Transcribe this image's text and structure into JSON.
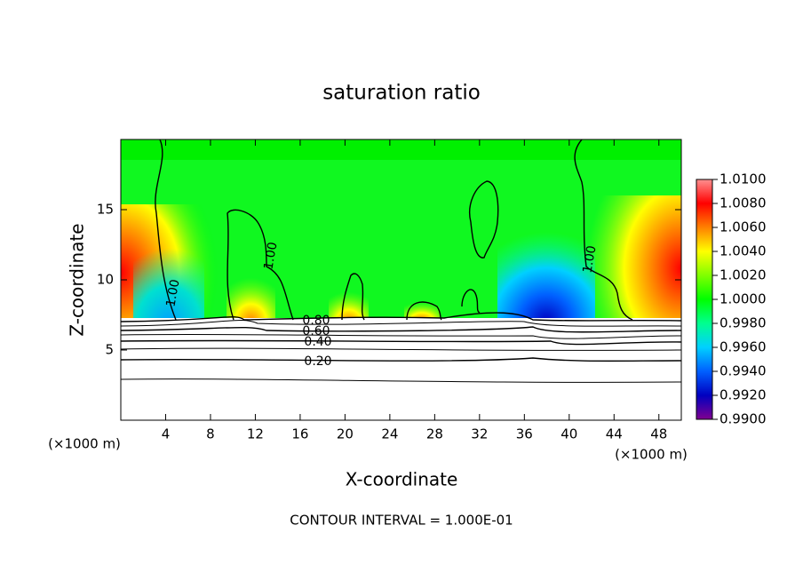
{
  "chart_data": {
    "type": "contour",
    "title": "saturation ratio",
    "x_label": "X-coordinate",
    "y_label": "Z-coordinate",
    "x_unit": "(×1000 m)",
    "y_unit": "(×1000 m)",
    "footer": "CONTOUR INTERVAL = 1.000E-01",
    "xlim": [
      0,
      50
    ],
    "ylim": [
      0,
      20
    ],
    "xticks": [
      4,
      8,
      12,
      16,
      20,
      24,
      28,
      32,
      36,
      40,
      44,
      48
    ],
    "yticks": [
      5,
      10,
      15
    ],
    "contour_levels": [
      {
        "value": 0.2,
        "label": "0.20"
      },
      {
        "value": 0.4,
        "label": "0.40"
      },
      {
        "value": 0.6,
        "label": "0.60"
      },
      {
        "value": 0.8,
        "label": "0.80"
      },
      {
        "value": 1.0,
        "label": "1.00"
      }
    ],
    "colorbar": {
      "lim": [
        0.99,
        1.01
      ],
      "ticks": [
        {
          "value": 1.01,
          "label": "1.0100"
        },
        {
          "value": 1.008,
          "label": "1.0080"
        },
        {
          "value": 1.006,
          "label": "1.0060"
        },
        {
          "value": 1.004,
          "label": "1.0040"
        },
        {
          "value": 1.002,
          "label": "1.0020"
        },
        {
          "value": 1.0,
          "label": "1.0000"
        },
        {
          "value": 0.998,
          "label": "0.9980"
        },
        {
          "value": 0.996,
          "label": "0.9960"
        },
        {
          "value": 0.994,
          "label": "0.9940"
        },
        {
          "value": 0.992,
          "label": "0.9920"
        },
        {
          "value": 0.99,
          "label": "0.9900"
        }
      ],
      "colors": [
        "#ff9090",
        "#ff0000",
        "#ff8000",
        "#ffff00",
        "#80ff00",
        "#00ff00",
        "#00ff90",
        "#00d0ff",
        "#0060ff",
        "#0000c0",
        "#800090"
      ]
    }
  }
}
